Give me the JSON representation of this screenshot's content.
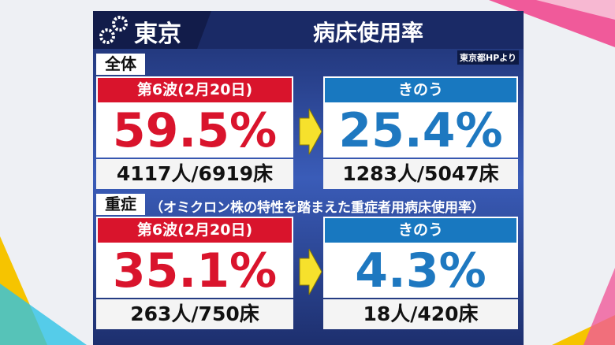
{
  "header": {
    "region": "東京",
    "title": "病床使用率",
    "source": "東京都HPより"
  },
  "sections": [
    {
      "label": "全体",
      "cards": [
        {
          "heading": "第6波(2月20日)",
          "value": "59.5%",
          "detail": "4117人/6919床"
        },
        {
          "heading": "きのう",
          "value": "25.4%",
          "detail": "1283人/5047床"
        }
      ]
    },
    {
      "label": "重症",
      "note": "（オミクロン株の特性を踏まえた重症者用病床使用率）",
      "cards": [
        {
          "heading": "第6波(2月20日)",
          "value": "35.1%",
          "detail": "263人/750床"
        },
        {
          "heading": "きのう",
          "value": "4.3%",
          "detail": "18人/420床"
        }
      ]
    }
  ]
}
